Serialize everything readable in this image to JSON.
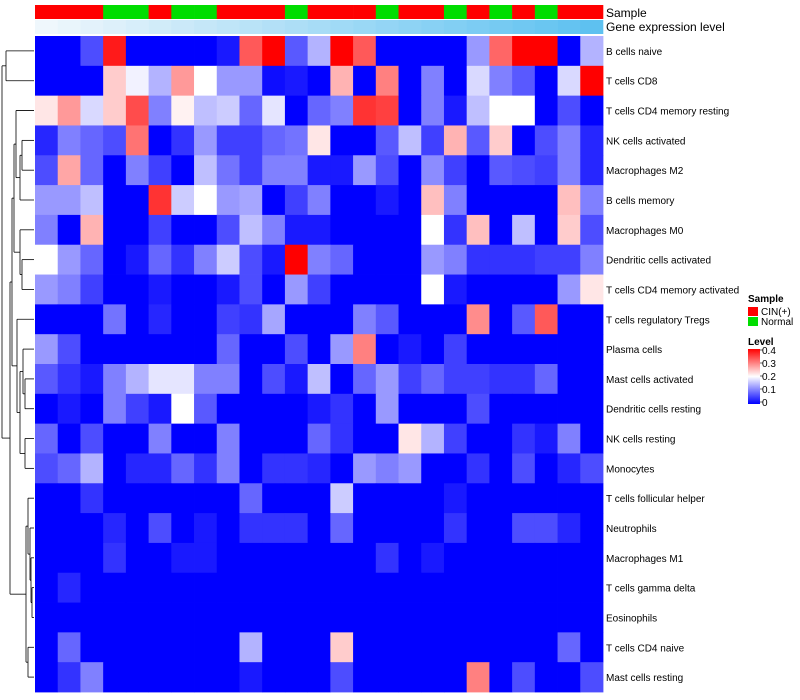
{
  "chart_data": {
    "type": "heatmap",
    "title": "",
    "annotation_tracks": [
      "Sample",
      "Gene expression level"
    ],
    "sample_groups": {
      "CIN(+)": "#ff0000",
      "Normal": "#00dd00"
    },
    "sample_annotation": [
      "CIN(+)",
      "CIN(+)",
      "CIN(+)",
      "Normal",
      "Normal",
      "CIN(+)",
      "Normal",
      "Normal",
      "CIN(+)",
      "CIN(+)",
      "CIN(+)",
      "Normal",
      "CIN(+)",
      "CIN(+)",
      "CIN(+)",
      "Normal",
      "CIN(+)",
      "CIN(+)",
      "Normal",
      "CIN(+)",
      "Normal",
      "CIN(+)",
      "Normal",
      "CIN(+)",
      "CIN(+)"
    ],
    "expression_track": [
      0.02,
      0.06,
      0.1,
      0.14,
      0.18,
      0.22,
      0.26,
      0.3,
      0.34,
      0.38,
      0.42,
      0.46,
      0.5,
      0.54,
      0.58,
      0.62,
      0.66,
      0.7,
      0.74,
      0.78,
      0.82,
      0.86,
      0.9,
      0.94,
      0.98
    ],
    "expression_colors": [
      "#f2f8fc",
      "#5bc0f0"
    ],
    "rows": [
      "B cells naive",
      "T cells CD8",
      "T cells CD4 memory resting",
      "NK cells activated",
      "Macrophages M2",
      "B cells memory",
      "Macrophages M0",
      "Dendritic cells activated",
      "T cells CD4 memory activated",
      "T cells regulatory  Tregs",
      "Plasma cells",
      "Mast cells activated",
      "Dendritic cells resting",
      "NK cells resting",
      "Monocytes",
      "T cells follicular helper",
      "Neutrophils",
      "Macrophages M1",
      "T cells gamma delta",
      "Eosinophils",
      "T cells CD4 naive",
      "Mast cells resting"
    ],
    "values": [
      [
        0,
        0,
        0.06,
        0.38,
        0,
        0,
        0,
        0,
        0.02,
        0.33,
        0.4,
        0.07,
        0.14,
        0.4,
        0.33,
        0,
        0,
        0,
        0,
        0.12,
        0.32,
        0.4,
        0.4,
        0,
        0.14
      ],
      [
        0,
        0,
        0,
        0.24,
        0.19,
        0.14,
        0.28,
        0.2,
        0.12,
        0.12,
        0.01,
        0.02,
        0,
        0.26,
        0,
        0.3,
        0,
        0.1,
        0,
        0.17,
        0.1,
        0.07,
        0,
        0.17,
        0.4
      ],
      [
        0.22,
        0.28,
        0.17,
        0.24,
        0.34,
        0.1,
        0.21,
        0.15,
        0.16,
        0.08,
        0.18,
        0,
        0.08,
        0.1,
        0.36,
        0.35,
        0,
        0.1,
        0.02,
        0.15,
        0.2,
        0.2,
        0,
        0.06,
        0
      ],
      [
        0.03,
        0.1,
        0.08,
        0.06,
        0.31,
        0,
        0.04,
        0.12,
        0.05,
        0.05,
        0.08,
        0.09,
        0.22,
        0,
        0,
        0.07,
        0.15,
        0.05,
        0.26,
        0.07,
        0.24,
        0,
        0.06,
        0.1,
        0.03
      ],
      [
        0.06,
        0.27,
        0.08,
        0,
        0.1,
        0.05,
        0,
        0.15,
        0.09,
        0.05,
        0.1,
        0.1,
        0.02,
        0.02,
        0.12,
        0.06,
        0,
        0.11,
        0.05,
        0,
        0.07,
        0.06,
        0.05,
        0.1,
        0.03
      ],
      [
        0.12,
        0.12,
        0.15,
        0,
        0,
        0.36,
        0.16,
        0.2,
        0.12,
        0.13,
        0,
        0.05,
        0.1,
        0,
        0,
        0.02,
        0,
        0.25,
        0.1,
        0,
        0,
        0,
        0,
        0.25,
        0.1
      ],
      [
        0.1,
        0,
        0.26,
        0,
        0,
        0.05,
        0,
        0,
        0.06,
        0.15,
        0.1,
        0.02,
        0.02,
        0,
        0,
        0,
        0,
        0.2,
        0.04,
        0.25,
        0,
        0.15,
        0,
        0.24,
        0.06
      ],
      [
        0.2,
        0.12,
        0.08,
        0,
        0.02,
        0.08,
        0.04,
        0.1,
        0.16,
        0.06,
        0.02,
        0.4,
        0.1,
        0.08,
        0,
        0,
        0,
        0.12,
        0.1,
        0.04,
        0.04,
        0.04,
        0.05,
        0.05,
        0.1
      ],
      [
        0.12,
        0.1,
        0.05,
        0,
        0,
        0.02,
        0,
        0,
        0.02,
        0.06,
        0,
        0.12,
        0.05,
        0,
        0,
        0,
        0,
        0.2,
        0.02,
        0,
        0,
        0,
        0,
        0.12,
        0.22
      ],
      [
        0,
        0,
        0,
        0.09,
        0,
        0.03,
        0,
        0,
        0.05,
        0.04,
        0.13,
        0,
        0,
        0,
        0.1,
        0.07,
        0,
        0,
        0,
        0.29,
        0,
        0.07,
        0.33,
        0,
        0
      ],
      [
        0.12,
        0.06,
        0,
        0,
        0,
        0,
        0,
        0,
        0.08,
        0,
        0,
        0.06,
        0,
        0.12,
        0.3,
        0,
        0.02,
        0,
        0.05,
        0,
        0,
        0,
        0,
        0,
        0
      ],
      [
        0.07,
        0.04,
        0.02,
        0.1,
        0.14,
        0.18,
        0.18,
        0.1,
        0.1,
        0,
        0.06,
        0.02,
        0.15,
        0,
        0.08,
        0.12,
        0.05,
        0.08,
        0.05,
        0.05,
        0.04,
        0.04,
        0.08,
        0,
        0
      ],
      [
        0,
        0.02,
        0,
        0.1,
        0.05,
        0.02,
        0.2,
        0.07,
        0,
        0,
        0,
        0,
        0.02,
        0.04,
        0,
        0.12,
        0,
        0,
        0,
        0.06,
        0,
        0,
        0,
        0,
        0
      ],
      [
        0.08,
        0,
        0.06,
        0,
        0,
        0.1,
        0,
        0,
        0.1,
        0,
        0,
        0,
        0.08,
        0.04,
        0,
        0,
        0.22,
        0.14,
        0.05,
        0,
        0,
        0.04,
        0.02,
        0.1,
        0
      ],
      [
        0.06,
        0.08,
        0.14,
        0,
        0.03,
        0.03,
        0.08,
        0.04,
        0.1,
        0,
        0.04,
        0.04,
        0.03,
        0,
        0.12,
        0.1,
        0.12,
        0,
        0,
        0.04,
        0,
        0.06,
        0,
        0.03,
        0.06
      ],
      [
        0,
        0,
        0.04,
        0,
        0,
        0,
        0,
        0,
        0,
        0.08,
        0,
        0,
        0,
        0.16,
        0,
        0,
        0,
        0,
        0.02,
        0,
        0,
        0,
        0,
        0,
        0
      ],
      [
        0,
        0,
        0,
        0.03,
        0,
        0.06,
        0,
        0.02,
        0,
        0.04,
        0.04,
        0.04,
        0,
        0.08,
        0,
        0,
        0,
        0,
        0.04,
        0,
        0,
        0.06,
        0.06,
        0.03,
        0
      ],
      [
        0,
        0,
        0,
        0.04,
        0,
        0,
        0.02,
        0.02,
        0,
        0,
        0,
        0,
        0,
        0,
        0,
        0.04,
        0,
        0.02,
        0,
        0,
        0,
        0,
        0,
        0,
        0
      ],
      [
        0,
        0.03,
        0,
        0,
        0,
        0,
        0,
        0,
        0,
        0,
        0,
        0,
        0,
        0,
        0,
        0,
        0,
        0,
        0,
        0,
        0,
        0,
        0,
        0,
        0
      ],
      [
        0,
        0,
        0,
        0,
        0,
        0,
        0,
        0,
        0,
        0,
        0,
        0,
        0,
        0,
        0,
        0,
        0,
        0,
        0,
        0,
        0,
        0,
        0,
        0,
        0
      ],
      [
        0,
        0.08,
        0,
        0,
        0,
        0,
        0,
        0,
        0,
        0.14,
        0,
        0,
        0,
        0.24,
        0,
        0,
        0,
        0,
        0,
        0,
        0,
        0,
        0,
        0.08,
        0
      ],
      [
        0,
        0.04,
        0.1,
        0,
        0,
        0,
        0,
        0,
        0,
        0.02,
        0,
        0,
        0,
        0.06,
        0,
        0,
        0,
        0,
        0,
        0.3,
        0,
        0.06,
        0,
        0,
        0.06
      ]
    ],
    "color_scale": {
      "min": 0,
      "max": 0.4,
      "stops": [
        {
          "value": 0,
          "color": "#0000ff"
        },
        {
          "value": 0.2,
          "color": "#ffffff"
        },
        {
          "value": 0.4,
          "color": "#ff0000"
        }
      ]
    },
    "legend": {
      "sample_title": "Sample",
      "level_title": "Level",
      "level_ticks": [
        "0.4",
        "0.3",
        "0.2",
        "0.1",
        "0"
      ],
      "placement": "right"
    },
    "dendrogram": {
      "side": "left",
      "order": [
        "B cells naive",
        "T cells CD8",
        "T cells CD4 memory resting",
        "NK cells activated",
        "Macrophages M2",
        "B cells memory",
        "Macrophages M0",
        "Dendritic cells activated",
        "T cells CD4 memory activated",
        "T cells regulatory  Tregs",
        "Plasma cells",
        "Mast cells activated",
        "Dendritic cells resting",
        "NK cells resting",
        "Monocytes",
        "T cells follicular helper",
        "Neutrophils",
        "Macrophages M1",
        "T cells gamma delta",
        "Eosinophils",
        "T cells CD4 naive",
        "Mast cells resting"
      ]
    }
  }
}
